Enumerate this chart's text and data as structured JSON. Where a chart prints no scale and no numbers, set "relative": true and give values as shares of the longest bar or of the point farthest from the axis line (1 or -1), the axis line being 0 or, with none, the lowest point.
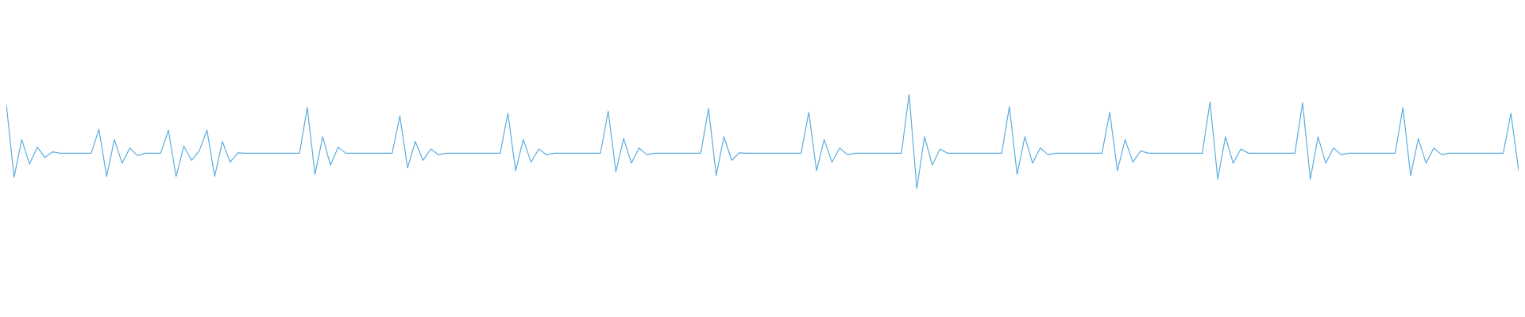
{
  "chart_data": {
    "type": "line",
    "relative": true,
    "marker": "none",
    "line_style": "solid",
    "grid": false,
    "legend": false,
    "categories": [
      null,
      null,
      null,
      null,
      null,
      null,
      null,
      null,
      null,
      null,
      null,
      null,
      null,
      null,
      null,
      null,
      null,
      null,
      null,
      null,
      null,
      null,
      null,
      null,
      null,
      null,
      null,
      null,
      null,
      null,
      null,
      null,
      null,
      null,
      null,
      null,
      null,
      null,
      null,
      null,
      null,
      null,
      null,
      null,
      null,
      null,
      null,
      null,
      null,
      null,
      null,
      null,
      null,
      null,
      null,
      null,
      null,
      null,
      null,
      null,
      null,
      null,
      null,
      null,
      null,
      null,
      null,
      null,
      null,
      null,
      null,
      null,
      null,
      null,
      null,
      null,
      null,
      null,
      null,
      null,
      null,
      null,
      null,
      null,
      null,
      null,
      null,
      null,
      null,
      null,
      null,
      null,
      null,
      null,
      null,
      null,
      null,
      null,
      null,
      null,
      null,
      null,
      null,
      null,
      null,
      null,
      null,
      null,
      null,
      null,
      null,
      null,
      null,
      null,
      null,
      null,
      null,
      null,
      null,
      null,
      null,
      null,
      null,
      null,
      null,
      null,
      null,
      null,
      null,
      null,
      null,
      null,
      null,
      null,
      null,
      null,
      null,
      null,
      null,
      null,
      null,
      null,
      null,
      null,
      null,
      null,
      null,
      null,
      null,
      null,
      null,
      null,
      null,
      null,
      null,
      null,
      null,
      null,
      null,
      null,
      null,
      null,
      null,
      null,
      null,
      null,
      null,
      null,
      null,
      null,
      null,
      null,
      null,
      null,
      null,
      null,
      null,
      null,
      null,
      null,
      null,
      null,
      null,
      null,
      null,
      null,
      null,
      null,
      null,
      null,
      null,
      null,
      null,
      null,
      null,
      null,
      null
    ],
    "series": [
      {
        "color": "#5dade2",
        "values": [
          0.89,
          0.12,
          0.52,
          0.26,
          0.44,
          0.33,
          0.39,
          0.375,
          0.375,
          0.375,
          0.375,
          0.375,
          0.63,
          0.13,
          0.52,
          0.27,
          0.43,
          0.35,
          0.375,
          0.375,
          0.375,
          0.62,
          0.13,
          0.45,
          0.3,
          0.4,
          0.62,
          0.13,
          0.5,
          0.28,
          0.38,
          0.375,
          0.375,
          0.375,
          0.375,
          0.375,
          0.375,
          0.375,
          0.375,
          0.86,
          0.15,
          0.55,
          0.25,
          0.44,
          0.375,
          0.375,
          0.375,
          0.375,
          0.375,
          0.375,
          0.375,
          0.77,
          0.22,
          0.5,
          0.3,
          0.42,
          0.36,
          0.375,
          0.375,
          0.375,
          0.375,
          0.375,
          0.375,
          0.375,
          0.375,
          0.8,
          0.19,
          0.52,
          0.28,
          0.42,
          0.36,
          0.375,
          0.375,
          0.375,
          0.375,
          0.375,
          0.375,
          0.375,
          0.82,
          0.18,
          0.53,
          0.27,
          0.43,
          0.36,
          0.375,
          0.375,
          0.375,
          0.375,
          0.375,
          0.375,
          0.375,
          0.85,
          0.14,
          0.55,
          0.3,
          0.38,
          0.375,
          0.375,
          0.375,
          0.375,
          0.375,
          0.375,
          0.375,
          0.375,
          0.81,
          0.19,
          0.52,
          0.28,
          0.43,
          0.36,
          0.375,
          0.375,
          0.375,
          0.375,
          0.375,
          0.375,
          0.375,
          1,
          0,
          0.55,
          0.25,
          0.42,
          0.375,
          0.375,
          0.375,
          0.375,
          0.375,
          0.375,
          0.375,
          0.375,
          0.87,
          0.15,
          0.55,
          0.27,
          0.43,
          0.36,
          0.375,
          0.375,
          0.375,
          0.375,
          0.375,
          0.375,
          0.375,
          0.81,
          0.19,
          0.52,
          0.28,
          0.4,
          0.375,
          0.375,
          0.375,
          0.375,
          0.375,
          0.375,
          0.375,
          0.375,
          0.92,
          0.1,
          0.55,
          0.27,
          0.42,
          0.375,
          0.375,
          0.375,
          0.375,
          0.375,
          0.375,
          0.375,
          0.91,
          0.1,
          0.55,
          0.27,
          0.43,
          0.36,
          0.375,
          0.375,
          0.375,
          0.375,
          0.375,
          0.375,
          0.375,
          0.86,
          0.14,
          0.53,
          0.27,
          0.43,
          0.36,
          0.375,
          0.375,
          0.375,
          0.375,
          0.375,
          0.375,
          0.375,
          0.375,
          0.8,
          0.19
        ]
      }
    ]
  }
}
